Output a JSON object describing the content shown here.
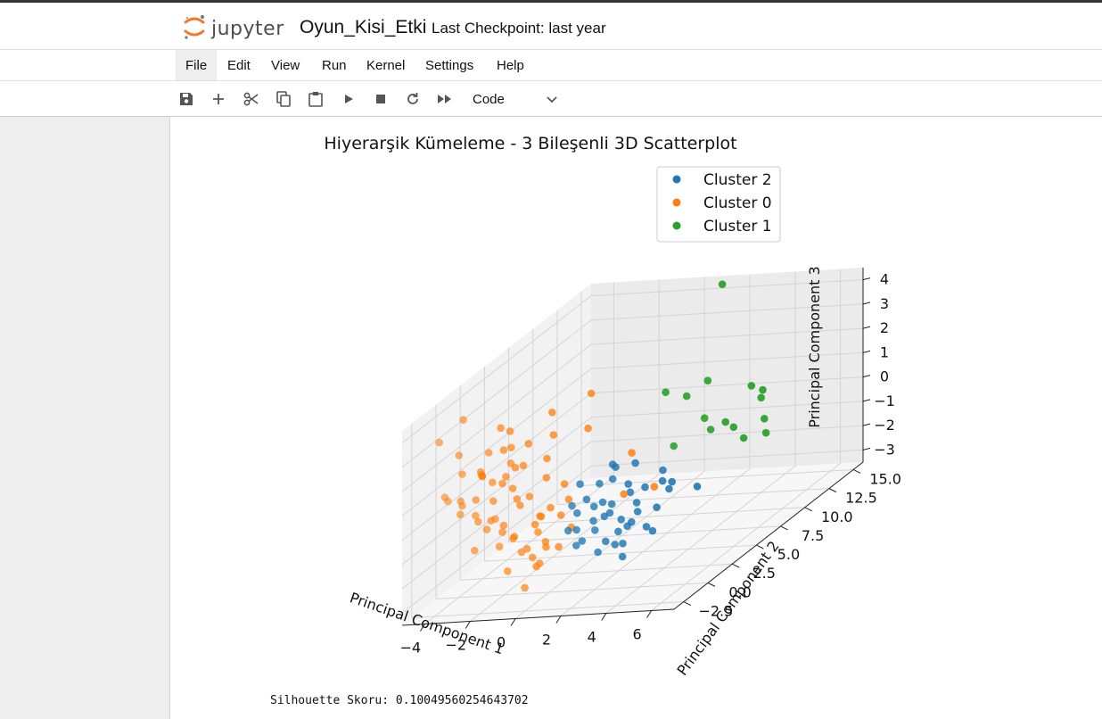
{
  "app": {
    "logo_text": "jupyter",
    "notebook_title": "Oyun_Kisi_Etki",
    "checkpoint": "Last Checkpoint: last year"
  },
  "menu": [
    "File",
    "Edit",
    "View",
    "Run",
    "Kernel",
    "Settings",
    "Help"
  ],
  "toolbar": {
    "cell_type": "Code"
  },
  "output": {
    "silhouette": "Silhouette Skoru: 0.10049560254643702"
  },
  "colors": {
    "cluster_0": "#ff7f0e",
    "cluster_1": "#2ca02c",
    "cluster_2": "#1f77b4"
  },
  "chart_data": {
    "type": "scatter",
    "projection": "3d",
    "title": "Hiyerarşik Kümeleme - 3 Bileşenli 3D Scatterplot",
    "xlabel": "Principal Component 1",
    "ylabel": "Principal Component 2",
    "zlabel": "Principal Component 3",
    "x_ticks": [
      "−4",
      "−2",
      "0",
      "2",
      "4",
      "6"
    ],
    "y_ticks": [
      "−2.5",
      "0.0",
      "2.5",
      "5.0",
      "7.5",
      "10.0",
      "12.5",
      "15.0"
    ],
    "z_ticks": [
      "−3",
      "−2",
      "−1",
      "0",
      "1",
      "2",
      "3",
      "4"
    ],
    "xlim": [
      -5,
      7
    ],
    "ylim": [
      -3.5,
      16
    ],
    "zlim": [
      -3.5,
      4.5
    ],
    "grid": true,
    "legend_position": "top-right",
    "series": [
      {
        "name": "Cluster 2",
        "color": "#1f77b4",
        "points": [
          [
            1.0,
            1.5,
            -0.2
          ],
          [
            1.5,
            2.0,
            -0.5
          ],
          [
            2.0,
            1.0,
            -0.8
          ],
          [
            2.5,
            2.5,
            -0.3
          ],
          [
            1.8,
            0.5,
            -1.2
          ],
          [
            2.2,
            3.0,
            -0.1
          ],
          [
            3.0,
            2.0,
            -0.6
          ],
          [
            1.2,
            0.0,
            -1.0
          ],
          [
            2.8,
            1.5,
            -1.4
          ],
          [
            3.5,
            3.5,
            -0.2
          ],
          [
            0.8,
            1.0,
            -0.6
          ],
          [
            1.6,
            2.8,
            0.2
          ],
          [
            2.4,
            0.2,
            -1.6
          ],
          [
            3.2,
            1.0,
            -1.1
          ],
          [
            1.9,
            1.8,
            -0.9
          ],
          [
            2.6,
            3.8,
            -0.5
          ],
          [
            0.5,
            2.0,
            0.3
          ],
          [
            1.4,
            -0.5,
            -1.5
          ],
          [
            3.8,
            2.2,
            -0.9
          ],
          [
            2.1,
            2.2,
            -1.8
          ],
          [
            4.0,
            3.0,
            -0.4
          ],
          [
            1.7,
            1.2,
            0.5
          ],
          [
            2.9,
            0.8,
            -1.9
          ],
          [
            0.9,
            2.5,
            -0.8
          ],
          [
            3.3,
            4.0,
            0.1
          ],
          [
            2.3,
            1.4,
            -2.1
          ],
          [
            1.1,
            0.8,
            -1.7
          ],
          [
            3.6,
            1.6,
            -1.5
          ],
          [
            2.7,
            2.8,
            -1.2
          ],
          [
            1.3,
            3.5,
            0.6
          ],
          [
            4.3,
            2.6,
            0.0
          ],
          [
            0.7,
            0.3,
            -1.1
          ],
          [
            2.0,
            4.2,
            0.4
          ],
          [
            3.1,
            0.3,
            -2.3
          ],
          [
            1.5,
            1.5,
            -2.4
          ],
          [
            2.5,
            0.6,
            -0.2
          ],
          [
            1.0,
            2.2,
            -1.3
          ],
          [
            3.4,
            2.7,
            -2.0
          ],
          [
            0.4,
            1.4,
            -0.4
          ],
          [
            2.2,
            1.7,
            1.0
          ],
          [
            4.6,
            4.5,
            -0.8
          ],
          [
            1.8,
            3.2,
            -1.6
          ]
        ]
      },
      {
        "name": "Cluster 0",
        "color": "#ff7f0e",
        "points": [
          [
            -3.0,
            0.0,
            1.5
          ],
          [
            -2.5,
            1.0,
            0.8
          ],
          [
            -3.5,
            -1.0,
            0.2
          ],
          [
            -2.0,
            2.0,
            1.2
          ],
          [
            -1.5,
            0.5,
            0.0
          ],
          [
            -4.0,
            -2.0,
            3.5
          ],
          [
            -3.8,
            0.0,
            3.8
          ],
          [
            -2.8,
            2.5,
            2.5
          ],
          [
            -3.2,
            -1.5,
            2.0
          ],
          [
            -2.2,
            3.0,
            1.8
          ],
          [
            -1.8,
            -0.5,
            -0.5
          ],
          [
            -1.0,
            1.5,
            -0.8
          ],
          [
            -0.5,
            0.0,
            -1.0
          ],
          [
            0.0,
            2.0,
            -0.3
          ],
          [
            -0.8,
            -1.0,
            -1.5
          ],
          [
            -1.2,
            2.5,
            0.5
          ],
          [
            -2.6,
            0.5,
            -0.5
          ],
          [
            -3.6,
            1.5,
            1.0
          ],
          [
            -4.2,
            0.5,
            2.2
          ],
          [
            -2.4,
            -2.0,
            0.4
          ],
          [
            -1.6,
            3.5,
            1.0
          ],
          [
            -0.2,
            -0.5,
            -0.2
          ],
          [
            -3.0,
            2.0,
            2.8
          ],
          [
            -2.0,
            -1.2,
            1.5
          ],
          [
            -1.3,
            -1.8,
            -0.4
          ],
          [
            -0.6,
            1.0,
            -1.7
          ],
          [
            -2.8,
            -0.8,
            -0.2
          ],
          [
            -3.4,
            -2.5,
            1.2
          ],
          [
            -1.0,
            -1.0,
            0.7
          ],
          [
            -2.2,
            1.2,
            2.2
          ],
          [
            0.3,
            0.5,
            -0.5
          ],
          [
            -0.4,
            2.5,
            0.2
          ],
          [
            -1.7,
            0.0,
            1.9
          ],
          [
            -3.7,
            -0.5,
            0.6
          ],
          [
            -2.1,
            -2.8,
            -0.8
          ],
          [
            -1.4,
            1.8,
            -1.2
          ],
          [
            0.5,
            -1.5,
            -1.2
          ],
          [
            -0.9,
            -2.2,
            -1.9
          ],
          [
            -2.9,
            1.0,
            0.1
          ],
          [
            -3.3,
            3.0,
            1.6
          ],
          [
            -1.9,
            0.7,
            -1.4
          ],
          [
            -0.3,
            -0.3,
            -2.2
          ],
          [
            -2.5,
            -0.4,
            2.5
          ],
          [
            -1.1,
            3.0,
            2.1
          ],
          [
            -0.1,
            1.2,
            -2.0
          ],
          [
            -2.7,
            2.8,
            0.9
          ],
          [
            -4.1,
            -1.2,
            1.0
          ],
          [
            -1.5,
            -2.5,
            0.3
          ],
          [
            -0.7,
            0.3,
            -2.5
          ],
          [
            -3.1,
            0.8,
            -1.0
          ],
          [
            1.5,
            5.0,
            0.6
          ],
          [
            0.0,
            4.0,
            2.0
          ],
          [
            -0.5,
            5.5,
            3.0
          ],
          [
            -1.8,
            4.5,
            2.6
          ],
          [
            3.5,
            -0.5,
            0.5
          ],
          [
            4.2,
            1.0,
            0.3
          ],
          [
            -2.3,
            1.6,
            0.4
          ],
          [
            -1.2,
            -0.8,
            -0.9
          ],
          [
            -3.9,
            2.2,
            0.8
          ],
          [
            -0.8,
            2.0,
            -0.6
          ],
          [
            -2.0,
            0.2,
            1.3
          ],
          [
            -1.6,
            -1.4,
            -1.1
          ],
          [
            -0.4,
            -1.6,
            -2.8
          ],
          [
            -2.6,
            -1.0,
            1.9
          ],
          [
            -3.5,
            0.6,
            0.3
          ],
          [
            -1.0,
            0.6,
            -2.2
          ],
          [
            0.2,
            1.8,
            -1.4
          ],
          [
            -1.9,
            2.4,
            -0.2
          ],
          [
            -2.9,
            -2.2,
            0.9
          ],
          [
            -0.9,
            -0.2,
            -1.6
          ]
        ]
      },
      {
        "name": "Cluster 1",
        "color": "#2ca02c",
        "points": [
          [
            0.0,
            12.0,
            1.0
          ],
          [
            0.5,
            13.0,
            0.5
          ],
          [
            1.0,
            14.0,
            0.8
          ],
          [
            1.5,
            12.5,
            -0.3
          ],
          [
            2.0,
            13.5,
            -0.8
          ],
          [
            2.5,
            15.0,
            0.2
          ],
          [
            3.0,
            12.0,
            -0.6
          ],
          [
            3.5,
            14.0,
            -0.9
          ],
          [
            4.0,
            13.0,
            -1.2
          ],
          [
            2.2,
            11.5,
            -0.5
          ],
          [
            1.0,
            15.5,
            4.3
          ],
          [
            3.0,
            15.0,
            0.0
          ],
          [
            4.0,
            12.5,
            0.4
          ],
          [
            1.0,
            10.5,
            -0.8
          ],
          [
            2.8,
            13.5,
            -1.5
          ]
        ]
      }
    ]
  }
}
